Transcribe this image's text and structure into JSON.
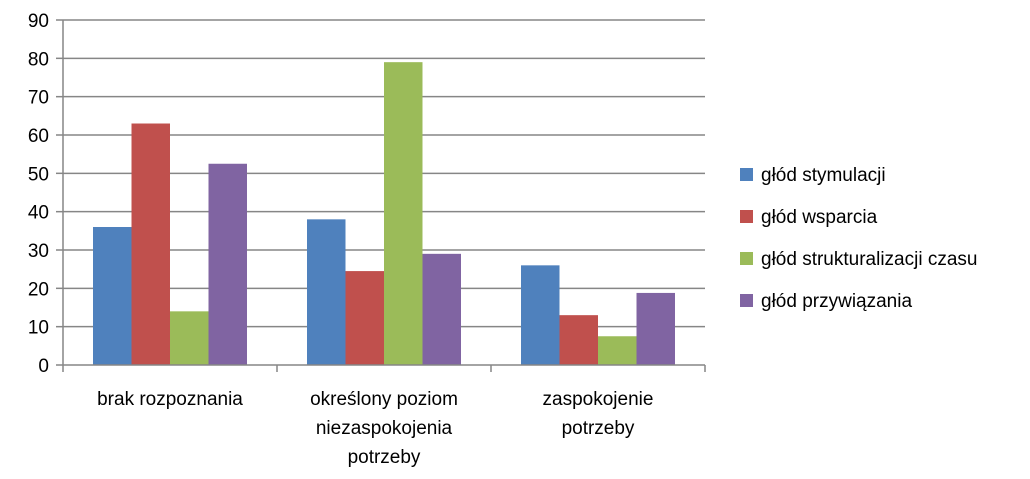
{
  "chart_data": {
    "type": "bar",
    "categories": [
      [
        "brak rozpoznania"
      ],
      [
        "określony poziom",
        "niezaspokojenia",
        "potrzeby"
      ],
      [
        "zaspokojenie",
        "potrzeby"
      ]
    ],
    "series": [
      {
        "name": "głód stymulacji",
        "color": "#4F81BD",
        "values": [
          36,
          38,
          26
        ]
      },
      {
        "name": "głód wsparcia",
        "color": "#C0504D",
        "values": [
          63,
          24.5,
          13
        ]
      },
      {
        "name": "głód strukturalizacji czasu",
        "color": "#9BBB59",
        "values": [
          14,
          79,
          7.5
        ]
      },
      {
        "name": "głód przywiązania",
        "color": "#8064A2",
        "values": [
          52.5,
          29,
          18.8
        ]
      }
    ],
    "title": "",
    "xlabel": "",
    "ylabel": "",
    "ylim": [
      0,
      90
    ],
    "yticks": [
      "0",
      "10",
      "20",
      "30",
      "40",
      "50",
      "60",
      "70",
      "80",
      "90"
    ],
    "grid": true,
    "legend": "right"
  }
}
